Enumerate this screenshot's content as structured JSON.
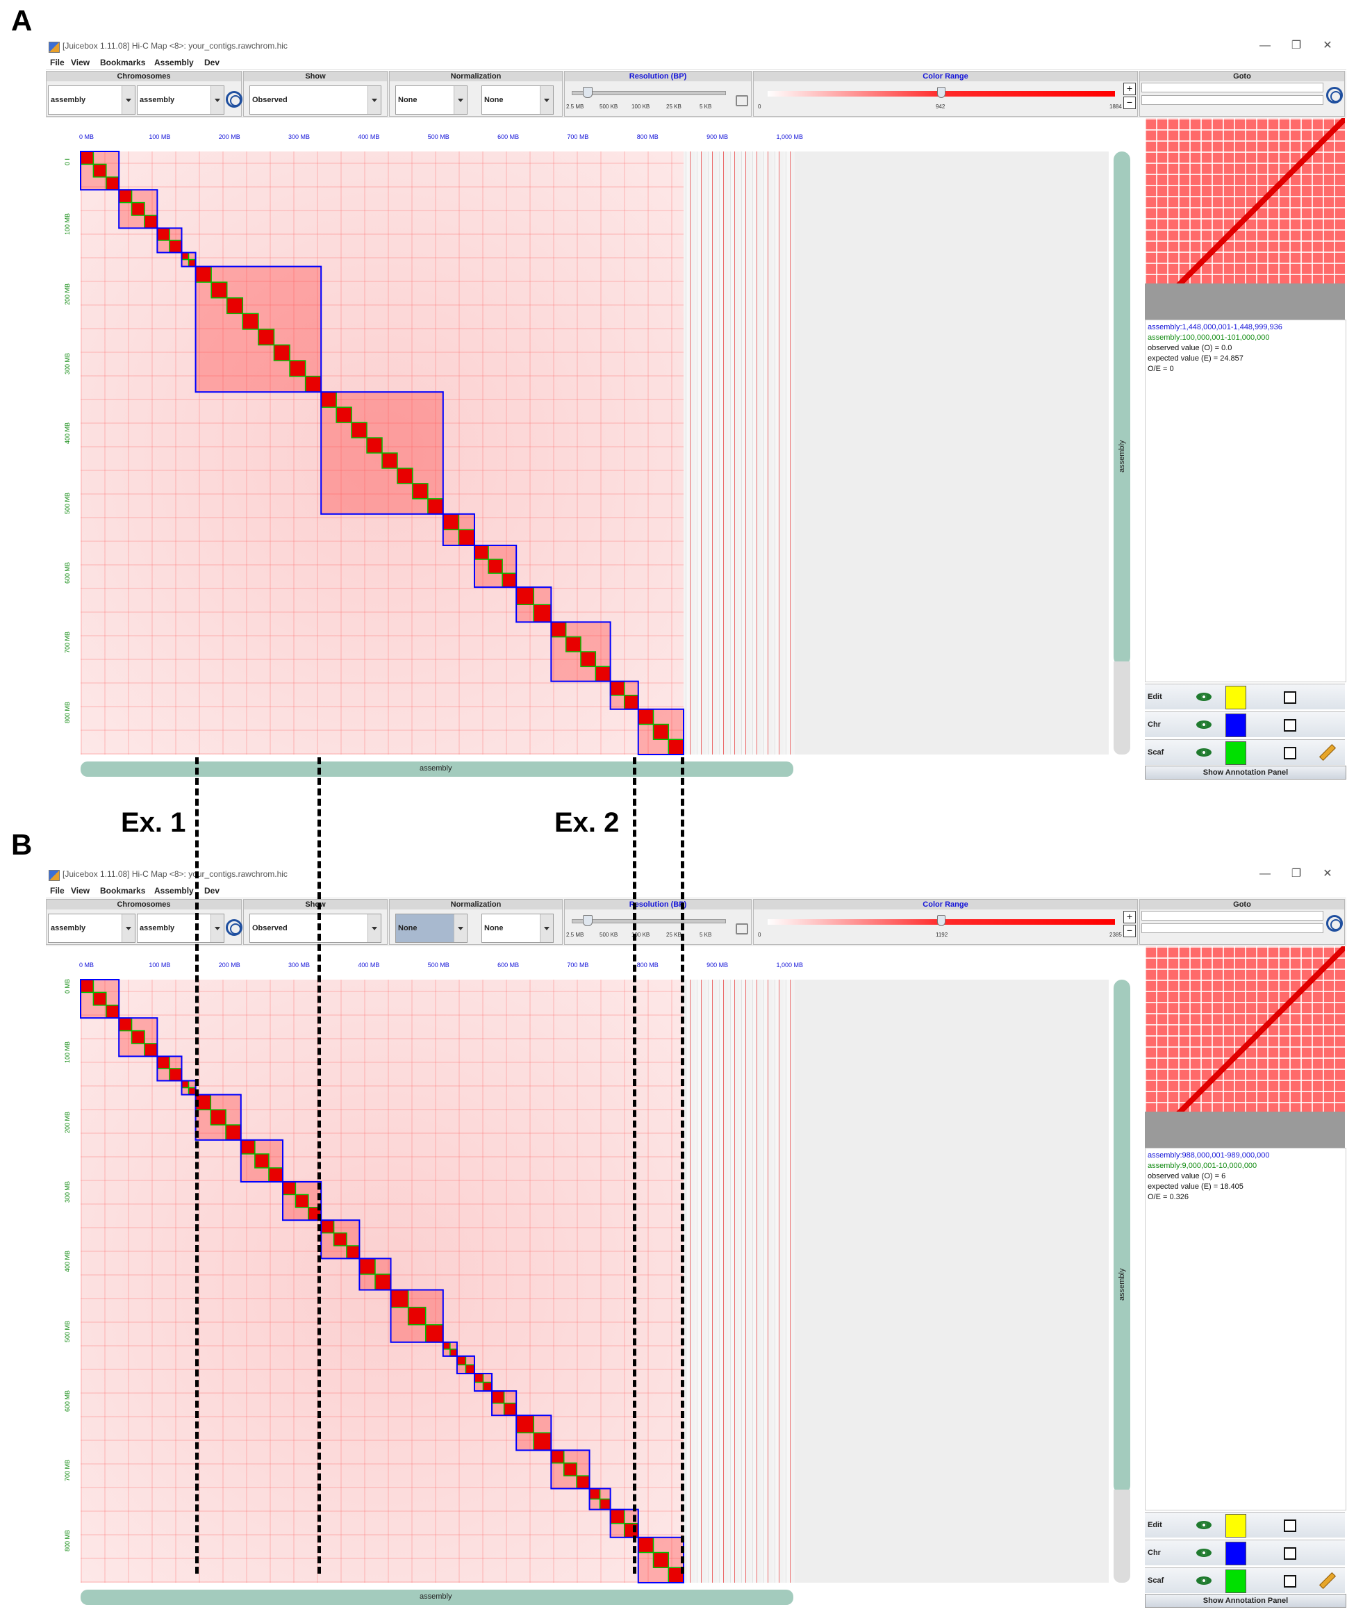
{
  "panels": [
    {
      "letter": "A",
      "window_title": "[Juicebox 1.11.08] Hi-C Map <8>: your_contigs.rawchrom.hic",
      "menu": [
        "File",
        "View",
        "Bookmarks",
        "Assembly",
        "Dev"
      ],
      "window_controls": {
        "minimize": "—",
        "restore": "❐",
        "close": "✕"
      },
      "toolbar": {
        "chromosomes_title": "Chromosomes",
        "chrom1": "assembly",
        "chrom2": "assembly",
        "show_title": "Show",
        "show_value": "Observed",
        "normalization_title": "Normalization",
        "norm1": "None",
        "norm2": "None",
        "norm1_selected": false,
        "resolution_title": "Resolution (BP)",
        "resolution_ticks": [
          "2.5 MB",
          "500 KB",
          "100 KB",
          "25 KB",
          "5 KB"
        ],
        "resolution_level": 0.1,
        "color_range_title": "Color Range",
        "color_min": "0",
        "color_mid": "942",
        "color_max": "1884",
        "color_level": 0.5,
        "goto_title": "Goto"
      },
      "x_axis_ticks": [
        "0 MB",
        "100 MB",
        "200 MB",
        "300 MB",
        "400 MB",
        "500 MB",
        "600 MB",
        "700 MB",
        "800 MB",
        "900 MB",
        "1,000 MB"
      ],
      "y_axis_ticks": [
        "0 I",
        "100 MB",
        "200 MB",
        "300 MB",
        "400 MB",
        "500 MB",
        "600 MB",
        "700 MB",
        "800 MB"
      ],
      "scrollbar_label": "assembly",
      "info": {
        "line1": "assembly:1,448,000,001-1,448,999,936",
        "line2": "assembly:100,000,001-101,000,000",
        "line3": "observed value (O) = 0.0",
        "line4": "expected value (E) = 24.857",
        "line5": "O/E = 0"
      },
      "annotations": [
        {
          "label": "Edit",
          "color": "#ffff00"
        },
        {
          "label": "Chr",
          "color": "#0000ff"
        },
        {
          "label": "Scaf",
          "color": "#00e000"
        }
      ],
      "show_annotation_panel": "Show Annotation Panel",
      "chromosome_blocks_mb": [
        [
          0,
          55
        ],
        [
          55,
          110
        ],
        [
          110,
          145
        ],
        [
          145,
          165
        ],
        [
          165,
          345
        ],
        [
          345,
          520
        ],
        [
          520,
          565
        ],
        [
          565,
          625
        ],
        [
          625,
          675
        ],
        [
          675,
          760
        ],
        [
          760,
          800
        ],
        [
          800,
          865
        ]
      ]
    },
    {
      "letter": "B",
      "window_title": "[Juicebox 1.11.08] Hi-C Map <8>: your_contigs.rawchrom.hic",
      "menu": [
        "File",
        "View",
        "Bookmarks",
        "Assembly",
        "Dev"
      ],
      "window_controls": {
        "minimize": "—",
        "restore": "❐",
        "close": "✕"
      },
      "toolbar": {
        "chromosomes_title": "Chromosomes",
        "chrom1": "assembly",
        "chrom2": "assembly",
        "show_title": "Show",
        "show_value": "Observed",
        "normalization_title": "Normalization",
        "norm1": "None",
        "norm2": "None",
        "norm1_selected": true,
        "resolution_title": "Resolution (BP)",
        "resolution_ticks": [
          "2.5 MB",
          "500 KB",
          "100 KB",
          "25 KB",
          "5 KB"
        ],
        "resolution_level": 0.1,
        "color_range_title": "Color Range",
        "color_min": "0",
        "color_mid": "1192",
        "color_max": "2385",
        "color_level": 0.5,
        "goto_title": "Goto"
      },
      "x_axis_ticks": [
        "0 MB",
        "100 MB",
        "200 MB",
        "300 MB",
        "400 MB",
        "500 MB",
        "600 MB",
        "700 MB",
        "800 MB",
        "900 MB",
        "1,000 MB"
      ],
      "y_axis_ticks": [
        "0 MB",
        "100 MB",
        "200 MB",
        "300 MB",
        "400 MB",
        "500 MB",
        "600 MB",
        "700 MB",
        "800 MB"
      ],
      "scrollbar_label": "assembly",
      "info": {
        "line1": "assembly:988,000,001-989,000,000",
        "line2": "assembly:9,000,001-10,000,000",
        "line3": "observed value (O) = 6",
        "line4": "expected value (E) = 18.405",
        "line5": "O/E = 0.326"
      },
      "annotations": [
        {
          "label": "Edit",
          "color": "#ffff00"
        },
        {
          "label": "Chr",
          "color": "#0000ff"
        },
        {
          "label": "Scaf",
          "color": "#00e000"
        }
      ],
      "show_annotation_panel": "Show Annotation Panel",
      "chromosome_blocks_mb": [
        [
          0,
          55
        ],
        [
          55,
          110
        ],
        [
          110,
          145
        ],
        [
          145,
          165
        ],
        [
          165,
          230
        ],
        [
          230,
          290
        ],
        [
          290,
          345
        ],
        [
          345,
          400
        ],
        [
          400,
          445
        ],
        [
          445,
          520
        ],
        [
          520,
          540
        ],
        [
          540,
          565
        ],
        [
          565,
          590
        ],
        [
          590,
          625
        ],
        [
          625,
          675
        ],
        [
          675,
          730
        ],
        [
          730,
          760
        ],
        [
          760,
          800
        ],
        [
          800,
          865
        ]
      ]
    }
  ],
  "examples": [
    {
      "label": "Ex. 1"
    },
    {
      "label": "Ex. 2"
    }
  ],
  "colors": {
    "chr_box": "#0000ff",
    "scaf_box": "#00c000",
    "contact": "#ff0000",
    "scrollbar": "#a3cbbd"
  }
}
